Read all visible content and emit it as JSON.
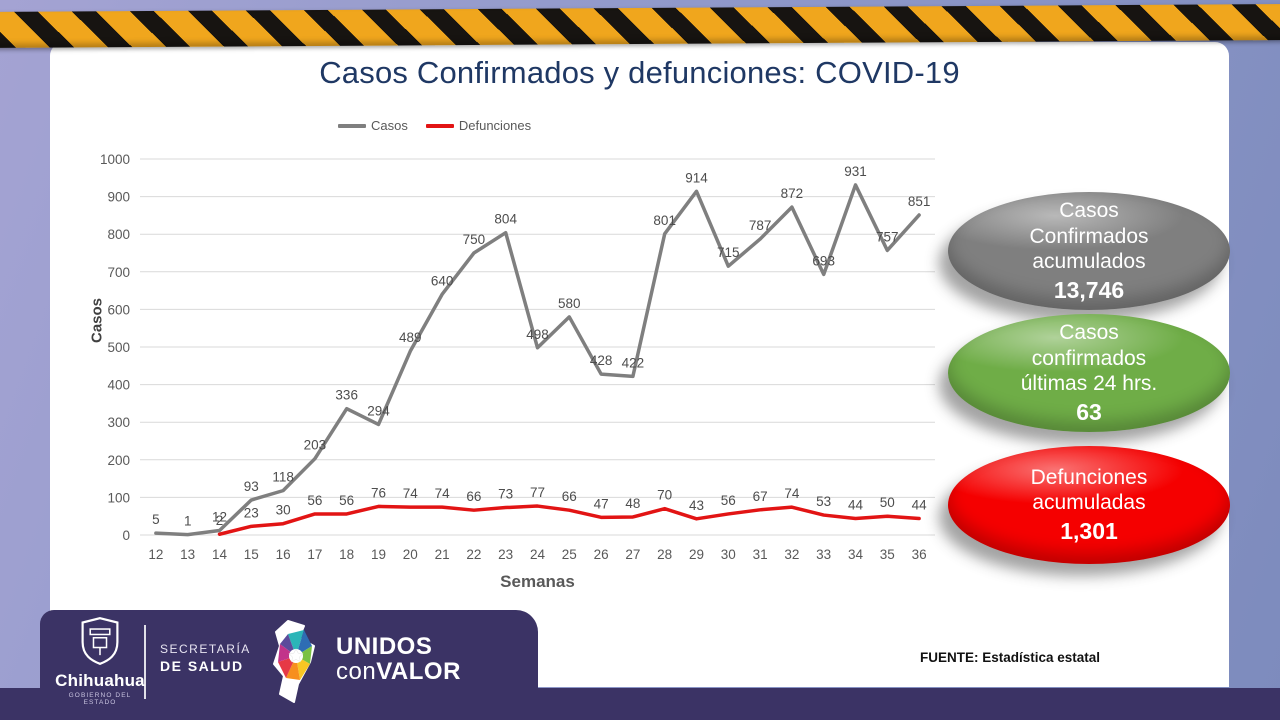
{
  "title": "Casos Confirmados y defunciones: COVID-19",
  "chart_data": {
    "type": "line",
    "title": "Casos Confirmados y defunciones: COVID-19",
    "x": [
      12,
      13,
      14,
      15,
      16,
      17,
      18,
      19,
      20,
      21,
      22,
      23,
      24,
      25,
      26,
      27,
      28,
      29,
      30,
      31,
      32,
      33,
      34,
      35,
      36
    ],
    "series": [
      {
        "name": "Casos",
        "color": "#7f7f7f",
        "values": [
          5,
          1,
          12,
          93,
          118,
          203,
          336,
          294,
          489,
          640,
          750,
          804,
          498,
          580,
          428,
          422,
          801,
          914,
          715,
          787,
          872,
          693,
          931,
          757,
          851
        ]
      },
      {
        "name": "Defunciones",
        "color": "#e21414",
        "values": [
          null,
          null,
          2,
          23,
          30,
          56,
          56,
          76,
          74,
          74,
          66,
          73,
          77,
          66,
          47,
          48,
          70,
          43,
          56,
          67,
          74,
          53,
          44,
          50,
          44
        ]
      }
    ],
    "xlabel": "Semanas",
    "ylabel": "Casos",
    "ylim": [
      0,
      1000
    ],
    "ytick_step": 100,
    "grid": true,
    "legend_position": "top"
  },
  "badges": [
    {
      "lines": [
        "Casos",
        "Confirmados",
        "acumulados"
      ],
      "value": "13,746",
      "color": "#7f7f7f"
    },
    {
      "lines": [
        "Casos",
        "confirmados",
        "últimas 24 hrs."
      ],
      "value": "63",
      "color": "#6fad47"
    },
    {
      "lines": [
        "Defunciones",
        "acumuladas"
      ],
      "value": "1,301",
      "color": "#f50000"
    }
  ],
  "footer": {
    "gobierno": {
      "name": "Chihuahua",
      "subtitle": "GOBIERNO DEL ESTADO"
    },
    "secretaria": {
      "line1": "SECRETARÍA",
      "line2": "DE SALUD"
    },
    "unidos": {
      "line1": "UNIDOS",
      "line2_normal": "con",
      "line2_bold": "VALOR"
    },
    "fuente": "FUENTE: Estadística estatal"
  }
}
